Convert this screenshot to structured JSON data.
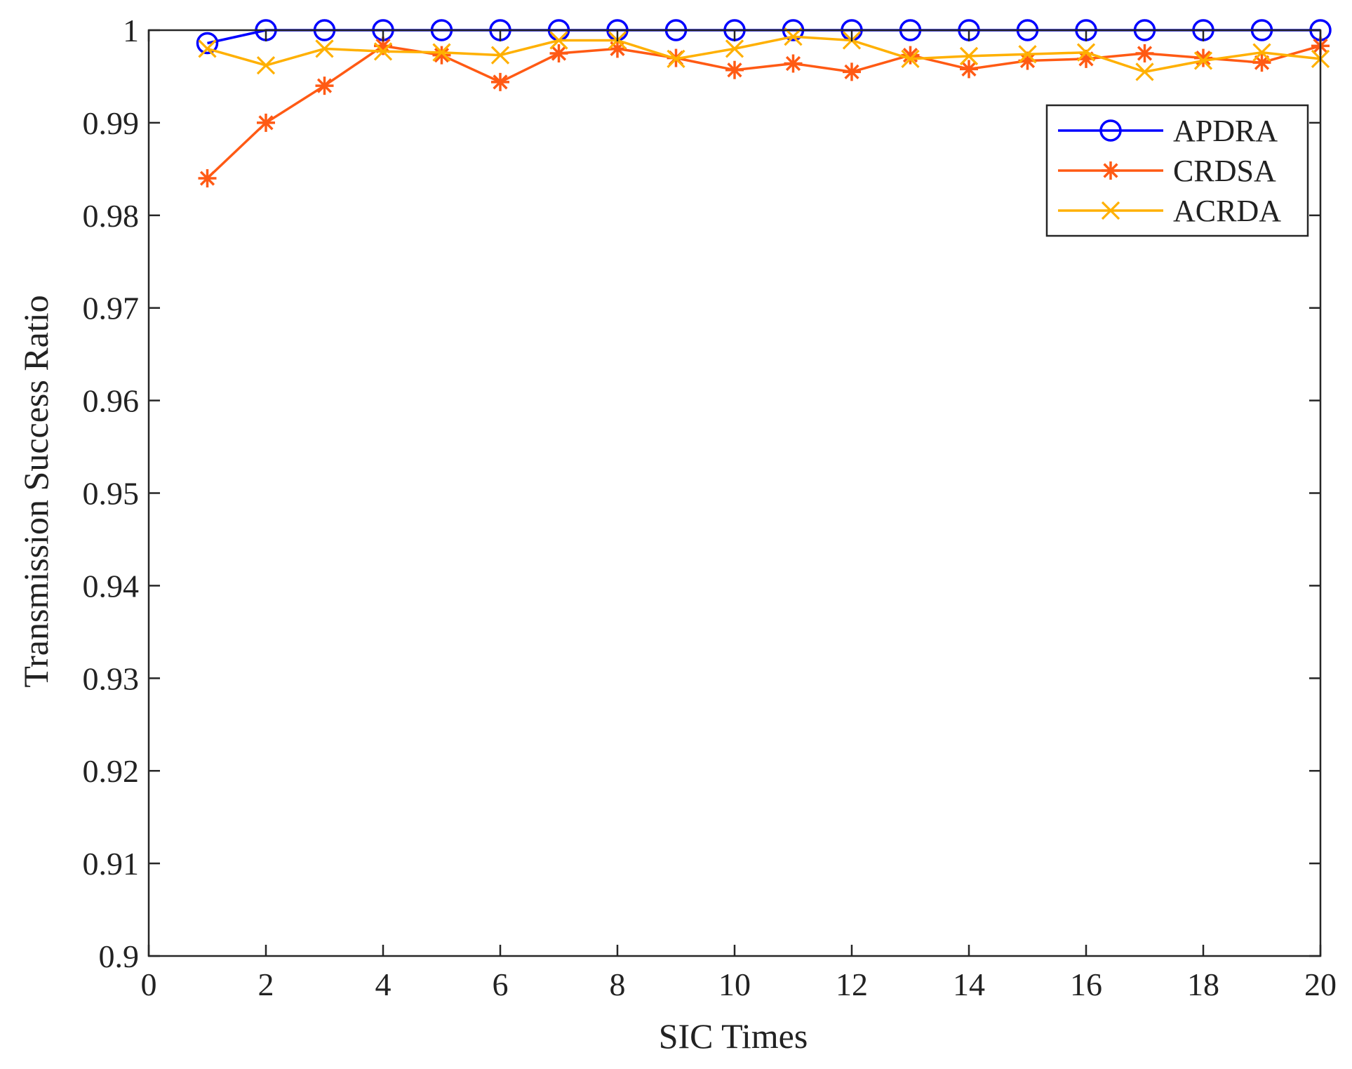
{
  "chart_data": {
    "type": "line",
    "title": "",
    "xlabel": "SIC Times",
    "ylabel": "Transmission Success Ratio",
    "xlim": [
      0,
      20
    ],
    "ylim": [
      0.9,
      1
    ],
    "x_ticks": [
      "0",
      "2",
      "4",
      "6",
      "8",
      "10",
      "12",
      "14",
      "16",
      "18",
      "20"
    ],
    "y_ticks": [
      "0.9",
      "0.91",
      "0.92",
      "0.93",
      "0.94",
      "0.95",
      "0.96",
      "0.97",
      "0.98",
      "0.99",
      "1"
    ],
    "grid": false,
    "legend_position": "top-right",
    "x": [
      1,
      2,
      3,
      4,
      5,
      6,
      7,
      8,
      9,
      10,
      11,
      12,
      13,
      14,
      15,
      16,
      17,
      18,
      19,
      20
    ],
    "series": [
      {
        "name": "APDRA",
        "color": "#0000ff",
        "marker": "circle",
        "values": [
          0.9986,
          1,
          1,
          1,
          1,
          1,
          1,
          1,
          1,
          1,
          1,
          1,
          1,
          1,
          1,
          1,
          1,
          1,
          1,
          1
        ]
      },
      {
        "name": "CRDSA",
        "color": "#ff5a14",
        "marker": "asterisk",
        "values": [
          0.984,
          0.99,
          0.994,
          0.9983,
          0.9973,
          0.9944,
          0.9975,
          0.998,
          0.997,
          0.9957,
          0.9964,
          0.9955,
          0.9973,
          0.9958,
          0.9967,
          0.9969,
          0.9975,
          0.997,
          0.9965,
          0.9983
        ]
      },
      {
        "name": "ACRDA",
        "color": "#ffb000",
        "marker": "x",
        "values": [
          0.998,
          0.9962,
          0.998,
          0.9977,
          0.9976,
          0.9973,
          0.9989,
          0.9989,
          0.9969,
          0.998,
          0.9993,
          0.9989,
          0.9969,
          0.9972,
          0.9974,
          0.9976,
          0.9955,
          0.9967,
          0.9976,
          0.9969
        ]
      }
    ]
  }
}
